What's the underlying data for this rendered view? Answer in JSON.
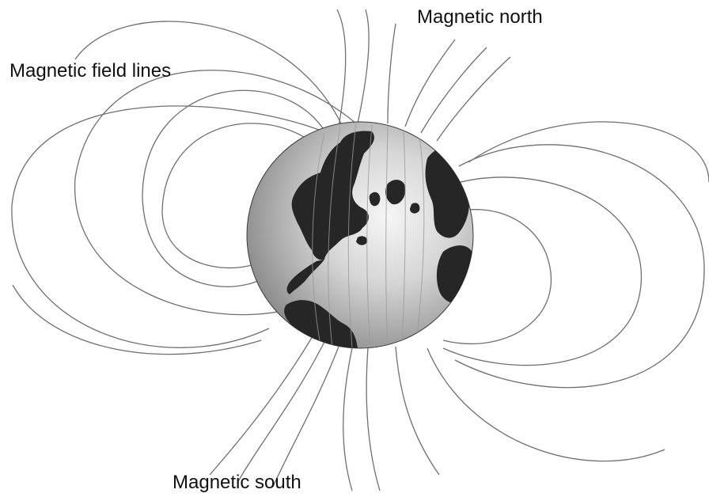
{
  "labels": {
    "field_lines": "Magnetic field lines",
    "north": "Magnetic north",
    "south": "Magnetic south"
  },
  "colors": {
    "background": "#ffffff",
    "field_line": "#6f6f6f",
    "continent": "#262626",
    "ocean_light": "#f4f4f4",
    "ocean_dark": "#8a8a8a",
    "text": "#111111"
  }
}
